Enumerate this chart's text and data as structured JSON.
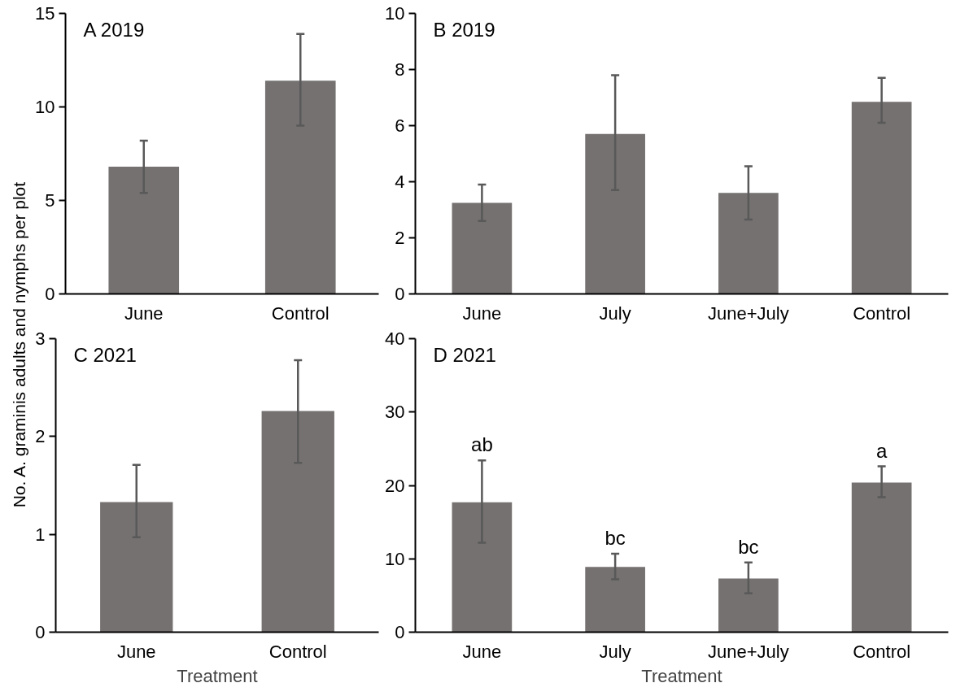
{
  "chart_data": [
    {
      "type": "bar",
      "title": "A  2019",
      "categories": [
        "June",
        "Control"
      ],
      "values": [
        6.8,
        11.4
      ],
      "errors": [
        [
          5.4,
          8.2
        ],
        [
          9.0,
          13.9
        ]
      ],
      "color": "#757170",
      "ylim": [
        0,
        15
      ],
      "yticks": [
        0,
        5,
        10,
        15
      ],
      "grid": false
    },
    {
      "type": "bar",
      "title": "B  2019",
      "categories": [
        "June",
        "July",
        "June+July",
        "Control"
      ],
      "values": [
        3.25,
        5.7,
        3.6,
        6.85
      ],
      "errors": [
        [
          2.6,
          3.9
        ],
        [
          3.7,
          7.8
        ],
        [
          2.65,
          4.55
        ],
        [
          6.1,
          7.7
        ]
      ],
      "color": "#757170",
      "ylim": [
        0,
        10
      ],
      "yticks": [
        0,
        2,
        4,
        6,
        8,
        10
      ],
      "grid": false
    },
    {
      "type": "bar",
      "title": "C  2021",
      "ylabel": "No. A. graminis adults and nymphs per plot",
      "xlabel": "Treatment",
      "categories": [
        "June",
        "Control"
      ],
      "values": [
        1.33,
        2.26
      ],
      "errors": [
        [
          0.97,
          1.71
        ],
        [
          1.73,
          2.78
        ]
      ],
      "color": "#757170",
      "ylim": [
        0,
        3
      ],
      "yticks": [
        0,
        1,
        2,
        3
      ],
      "grid": false
    },
    {
      "type": "bar",
      "title": "D  2021",
      "xlabel": "Treatment",
      "categories": [
        "June",
        "July",
        "June+July",
        "Control"
      ],
      "values": [
        17.7,
        8.9,
        7.3,
        20.4
      ],
      "errors": [
        [
          12.2,
          23.4
        ],
        [
          7.2,
          10.7
        ],
        [
          5.3,
          9.5
        ],
        [
          18.4,
          22.6
        ]
      ],
      "color": "#757170",
      "ylim": [
        0,
        40
      ],
      "yticks": [
        0,
        10,
        20,
        30,
        40
      ],
      "grid": false,
      "annotations": [
        {
          "text": "ab",
          "x": "June",
          "y": 23.4
        },
        {
          "text": "bc",
          "x": "July",
          "y": 10.7
        },
        {
          "text": "bc",
          "x": "June+July",
          "y": 9.5
        },
        {
          "text": "a",
          "x": "Control",
          "y": 22.6
        }
      ]
    }
  ]
}
